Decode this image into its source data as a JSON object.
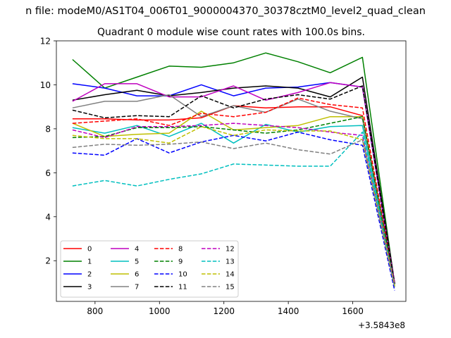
{
  "chart_data": {
    "type": "line",
    "suptitle": "n file: modeM0/AS1T04_006T01_9000004370_30378cztM0_level2_quad_clean",
    "title": "Quadrant 0 module wise count rates with 100.0s bins.",
    "xlabel": "",
    "ylabel": "",
    "x_offset_label": "+3.5843e8",
    "xlim": [
      680,
      1765
    ],
    "ylim": [
      0.15,
      12.0
    ],
    "x_ticks": [
      800,
      1000,
      1200,
      1400,
      1600
    ],
    "y_ticks": [
      2,
      4,
      6,
      8,
      10,
      12
    ],
    "grid": false,
    "legend": {
      "placement": "lower-left",
      "columns": 4
    },
    "x": [
      730,
      830,
      930,
      1030,
      1130,
      1230,
      1330,
      1430,
      1530,
      1630,
      1730
    ],
    "series": [
      {
        "name": "0",
        "color": "#ff0000",
        "dash": "solid",
        "values": [
          8.45,
          8.45,
          8.4,
          8.4,
          8.5,
          9.05,
          8.95,
          9.0,
          9.0,
          8.6,
          1.0
        ]
      },
      {
        "name": "1",
        "color": "#008000",
        "dash": "solid",
        "values": [
          11.15,
          9.85,
          10.35,
          10.85,
          10.8,
          11.0,
          11.45,
          11.05,
          10.55,
          11.25,
          0.95
        ]
      },
      {
        "name": "2",
        "color": "#0000ff",
        "dash": "solid",
        "values": [
          10.05,
          9.85,
          9.5,
          9.5,
          10.0,
          9.5,
          9.85,
          9.9,
          10.1,
          9.9,
          0.9
        ]
      },
      {
        "name": "3",
        "color": "#000000",
        "dash": "solid",
        "values": [
          9.3,
          9.55,
          9.75,
          9.5,
          9.65,
          9.85,
          9.95,
          9.85,
          9.45,
          10.35,
          1.0
        ]
      },
      {
        "name": "4",
        "color": "#bf00bf",
        "dash": "solid",
        "values": [
          9.25,
          10.05,
          10.05,
          9.45,
          9.45,
          9.95,
          9.3,
          9.65,
          10.1,
          9.9,
          1.0
        ]
      },
      {
        "name": "5",
        "color": "#00bfbf",
        "dash": "solid",
        "values": [
          8.05,
          7.8,
          8.15,
          7.65,
          8.25,
          7.35,
          8.2,
          7.85,
          8.1,
          8.15,
          0.8
        ]
      },
      {
        "name": "6",
        "color": "#bfbf00",
        "dash": "solid",
        "values": [
          8.25,
          7.65,
          7.75,
          7.8,
          8.8,
          7.95,
          8.05,
          8.15,
          8.55,
          8.55,
          0.9
        ]
      },
      {
        "name": "7",
        "color": "#808080",
        "dash": "solid",
        "values": [
          8.95,
          9.25,
          9.25,
          9.55,
          8.55,
          9.05,
          8.75,
          9.35,
          8.8,
          8.45,
          0.95
        ]
      },
      {
        "name": "8",
        "color": "#ff0000",
        "dash": "dashed",
        "values": [
          8.25,
          8.35,
          8.45,
          8.15,
          8.7,
          8.55,
          8.75,
          9.4,
          9.1,
          8.95,
          0.95
        ]
      },
      {
        "name": "9",
        "color": "#008000",
        "dash": "dashed",
        "values": [
          7.6,
          7.65,
          8.05,
          8.05,
          8.1,
          7.95,
          7.8,
          7.95,
          8.25,
          8.55,
          0.95
        ]
      },
      {
        "name": "10",
        "color": "#0000ff",
        "dash": "dashed",
        "values": [
          6.9,
          6.8,
          7.55,
          6.9,
          7.4,
          7.7,
          7.45,
          7.85,
          7.5,
          7.25,
          0.65
        ]
      },
      {
        "name": "11",
        "color": "#000000",
        "dash": "dashed",
        "values": [
          8.85,
          8.5,
          8.6,
          8.55,
          9.5,
          8.95,
          9.35,
          9.55,
          9.35,
          9.95,
          0.95
        ]
      },
      {
        "name": "12",
        "color": "#bf00bf",
        "dash": "dashed",
        "values": [
          7.95,
          7.6,
          8.1,
          8.1,
          8.15,
          8.25,
          8.15,
          8.05,
          7.85,
          7.7,
          0.95
        ]
      },
      {
        "name": "13",
        "color": "#00bfbf",
        "dash": "dashed",
        "values": [
          5.4,
          5.65,
          5.4,
          5.7,
          5.95,
          6.4,
          6.35,
          6.3,
          6.3,
          7.85,
          0.85
        ]
      },
      {
        "name": "14",
        "color": "#bfbf00",
        "dash": "dashed",
        "values": [
          7.7,
          7.55,
          7.55,
          7.35,
          8.1,
          7.7,
          7.95,
          7.9,
          7.9,
          7.5,
          0.85
        ]
      },
      {
        "name": "15",
        "color": "#808080",
        "dash": "dashed",
        "values": [
          7.15,
          7.3,
          7.25,
          7.3,
          7.4,
          7.1,
          7.35,
          7.05,
          6.85,
          7.5,
          0.8
        ]
      }
    ]
  }
}
